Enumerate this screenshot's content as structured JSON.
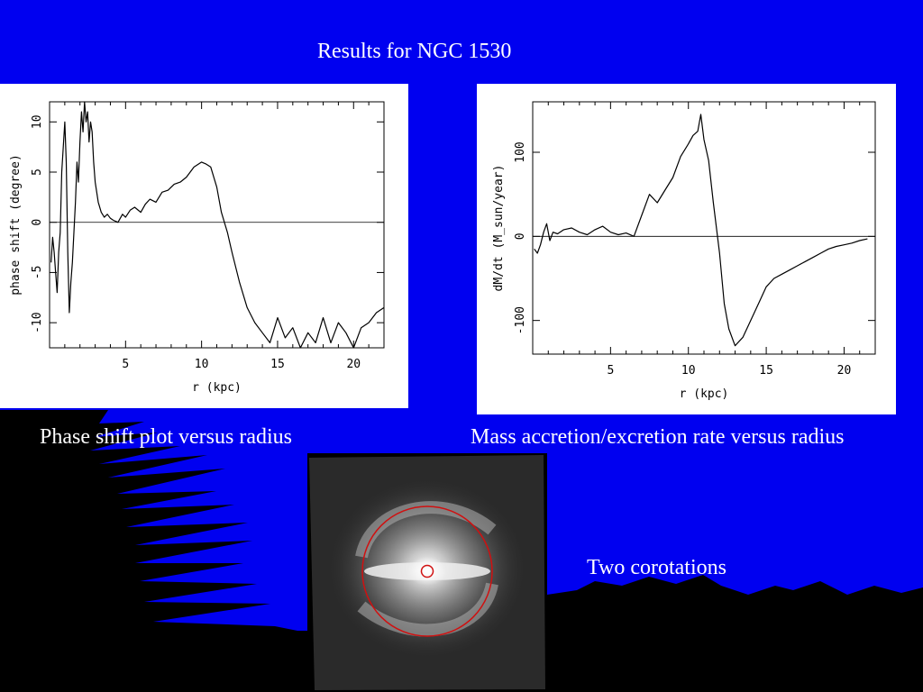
{
  "slide": {
    "title": "Results for NGC 1530",
    "caption_left": "Phase shift plot versus radius",
    "caption_right": "Mass accretion/excretion rate versus radius",
    "caption_galaxy": "Two corotations",
    "colors": {
      "background": "#0000f0",
      "silhouette": "#000000",
      "text": "#ffffff",
      "ring": "#d01010"
    }
  },
  "chart_data": [
    {
      "type": "line",
      "xlabel": "r (kpc)",
      "ylabel": "phase shift (degree)",
      "xlim": [
        0,
        22
      ],
      "ylim": [
        -12.5,
        12
      ],
      "xticks": [
        5,
        10,
        15,
        20
      ],
      "yticks": [
        -10,
        -5,
        0,
        5,
        10
      ],
      "reference_line": 0,
      "x": [
        0.1,
        0.2,
        0.3,
        0.4,
        0.5,
        0.6,
        0.7,
        0.8,
        1.0,
        1.1,
        1.2,
        1.3,
        1.4,
        1.5,
        1.6,
        1.7,
        1.8,
        1.9,
        2.0,
        2.1,
        2.2,
        2.3,
        2.4,
        2.5,
        2.6,
        2.7,
        2.8,
        2.9,
        3.0,
        3.2,
        3.4,
        3.6,
        3.8,
        4.0,
        4.2,
        4.5,
        4.8,
        5.0,
        5.3,
        5.6,
        6.0,
        6.3,
        6.6,
        7.0,
        7.4,
        7.8,
        8.2,
        8.6,
        9.0,
        9.5,
        10.0,
        10.3,
        10.6,
        11.0,
        11.3,
        11.7,
        12.0,
        12.5,
        13.0,
        13.5,
        14.0,
        14.5,
        15.0,
        15.5,
        16.0,
        16.5,
        17.0,
        17.5,
        18.0,
        18.5,
        19.0,
        19.5,
        20.0,
        20.5,
        21.0,
        21.5,
        22.0
      ],
      "y": [
        -4,
        -1.5,
        -3,
        -5,
        -7,
        -3,
        -1,
        5,
        10,
        6,
        -3,
        -9,
        -6,
        -4,
        -1,
        2,
        6,
        4,
        8,
        11,
        9,
        12,
        10,
        11,
        8,
        10,
        9,
        6,
        4,
        2,
        1,
        0.5,
        0.8,
        0.4,
        0.2,
        0,
        0.8,
        0.5,
        1.2,
        1.5,
        1.0,
        1.8,
        2.3,
        2.0,
        3.0,
        3.2,
        3.8,
        4.0,
        4.5,
        5.5,
        6.0,
        5.8,
        5.5,
        3.5,
        1.0,
        -1.0,
        -3.0,
        -6.0,
        -8.5,
        -10.0,
        -11.0,
        -12.0,
        -9.5,
        -11.5,
        -10.5,
        -12.5,
        -11.0,
        -12.0,
        -9.5,
        -12.0,
        -10.0,
        -11.0,
        -12.5,
        -10.5,
        -10.0,
        -9.0,
        -8.5
      ]
    },
    {
      "type": "line",
      "xlabel": "r (kpc)",
      "ylabel": "dM/dt (M_sun/year)",
      "xlim": [
        0,
        22
      ],
      "ylim": [
        -140,
        160
      ],
      "xticks": [
        5,
        10,
        15,
        20
      ],
      "yticks": [
        -100,
        0,
        100
      ],
      "reference_line": 0,
      "x": [
        0.1,
        0.3,
        0.5,
        0.7,
        0.9,
        1.1,
        1.3,
        1.6,
        2.0,
        2.5,
        3.0,
        3.5,
        4.0,
        4.5,
        5.0,
        5.5,
        6.0,
        6.5,
        7.0,
        7.5,
        8.0,
        8.5,
        9.0,
        9.5,
        10.0,
        10.3,
        10.6,
        10.8,
        11.0,
        11.3,
        11.6,
        12.0,
        12.3,
        12.6,
        13.0,
        13.5,
        14.0,
        14.5,
        15.0,
        15.5,
        16.0,
        16.5,
        17.0,
        17.5,
        18.0,
        18.5,
        19.0,
        19.5,
        20.0,
        20.5,
        21.0,
        21.5
      ],
      "y": [
        -15,
        -20,
        -10,
        5,
        15,
        -5,
        5,
        3,
        8,
        10,
        5,
        2,
        8,
        12,
        5,
        2,
        4,
        0,
        25,
        50,
        40,
        55,
        70,
        95,
        110,
        120,
        125,
        145,
        115,
        90,
        40,
        -20,
        -80,
        -110,
        -130,
        -120,
        -100,
        -80,
        -60,
        -50,
        -45,
        -40,
        -35,
        -30,
        -25,
        -20,
        -15,
        -12,
        -10,
        -8,
        -5,
        -3
      ]
    }
  ]
}
